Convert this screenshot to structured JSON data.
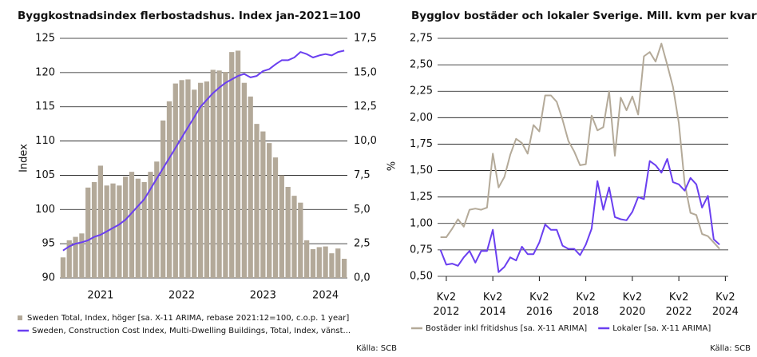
{
  "chart_data": [
    {
      "type": "combo",
      "title": "Byggkostnadsindex flerbostadshus. Index jan-2021=100",
      "ylabel": "Index",
      "y2label": "%",
      "source": "Källa: SCB",
      "categories": [
        null,
        null,
        null,
        null,
        null,
        null,
        "2021",
        null,
        null,
        null,
        null,
        null,
        null,
        null,
        null,
        null,
        null,
        null,
        null,
        "2022",
        null,
        null,
        null,
        null,
        null,
        null,
        null,
        null,
        null,
        null,
        null,
        null,
        "2023",
        null,
        null,
        null,
        null,
        null,
        null,
        null,
        null,
        null,
        "2024",
        null,
        null,
        null
      ],
      "ylim": [
        90,
        125
      ],
      "yticks": [
        90,
        95,
        100,
        105,
        110,
        115,
        120,
        125
      ],
      "y2lim": [
        0,
        17.5
      ],
      "y2ticks": [
        {
          "value": 0,
          "label": "0,0"
        },
        {
          "value": 2.5,
          "label": "2,5"
        },
        {
          "value": 5,
          "label": "5,0"
        },
        {
          "value": 7.5,
          "label": "7,5"
        },
        {
          "value": 10,
          "label": "10,0"
        },
        {
          "value": 12.5,
          "label": "12,5"
        },
        {
          "value": 15,
          "label": "15,0"
        },
        {
          "value": 17.5,
          "label": "17,5"
        }
      ],
      "grid": true,
      "series": [
        {
          "name": "Sweden Total, Index, höger [sa. X-11 ARIMA, rebase 2021:12=100, c.o.p. 1 year]",
          "type": "bar",
          "axis": "y2",
          "color": "#b3a999",
          "values": [
            1.5,
            2.75,
            3,
            3.25,
            6.6,
            7,
            8.2,
            6.75,
            6.9,
            6.75,
            7.4,
            7.75,
            7.25,
            7,
            7.75,
            8.5,
            11.5,
            12.9,
            14.2,
            14.45,
            14.5,
            13.75,
            14.25,
            14.35,
            15.2,
            15.15,
            15.05,
            16.5,
            16.6,
            14.25,
            13.25,
            11.25,
            10.7,
            9.85,
            8.8,
            7.5,
            6.65,
            6,
            5.5,
            2.75,
            2.1,
            2.25,
            2.3,
            1.8,
            2.15,
            1.4
          ]
        },
        {
          "name": "Sweden, Construction Cost Index, Multi-Dwelling Buildings, Total, Index, vänst...",
          "type": "line",
          "color": "#6a3ff0",
          "values": [
            94,
            94.6,
            95,
            95.2,
            95.5,
            96,
            96.3,
            96.8,
            97.3,
            97.8,
            98.5,
            99.5,
            100.5,
            101.5,
            103,
            104.5,
            106,
            107.5,
            109,
            110.5,
            112,
            113.5,
            115,
            116,
            117,
            117.8,
            118.5,
            119,
            119.5,
            119.8,
            119.3,
            119.5,
            120.2,
            120.5,
            121.2,
            121.8,
            121.8,
            122.2,
            123,
            122.7,
            122.2,
            122.5,
            122.7,
            122.5,
            123,
            123.2
          ]
        }
      ]
    },
    {
      "type": "line",
      "title": "Bygglov bostäder och lokaler Sverige. Mill. kvm per kvartal",
      "source": "Källa: SCB",
      "categories": [
        null,
        "Kv2 2012",
        null,
        null,
        null,
        null,
        null,
        null,
        null,
        "Kv2 2014",
        null,
        null,
        null,
        null,
        null,
        null,
        null,
        "Kv2 2016",
        null,
        null,
        null,
        null,
        null,
        null,
        null,
        "Kv2 2018",
        null,
        null,
        null,
        null,
        null,
        null,
        null,
        "Kv2 2020",
        null,
        null,
        null,
        null,
        null,
        null,
        null,
        "Kv2 2022",
        null,
        null,
        null,
        null,
        null,
        null,
        null,
        "Kv2 2024"
      ],
      "ylim": [
        0.5,
        2.75
      ],
      "yticks": [
        {
          "value": 0.5,
          "label": "0,50"
        },
        {
          "value": 0.75,
          "label": "0,75"
        },
        {
          "value": 1,
          "label": "1,00"
        },
        {
          "value": 1.25,
          "label": "1,25"
        },
        {
          "value": 1.5,
          "label": "1,50"
        },
        {
          "value": 1.75,
          "label": "1,75"
        },
        {
          "value": 2,
          "label": "2,00"
        },
        {
          "value": 2.25,
          "label": "2,25"
        },
        {
          "value": 2.5,
          "label": "2,50"
        },
        {
          "value": 2.75,
          "label": "2,75"
        }
      ],
      "grid": true,
      "series": [
        {
          "name": "Bostäder inkl fritidshus [sa. X-11 ARIMA]",
          "color": "#b4aa99",
          "values": [
            0.87,
            0.87,
            0.95,
            1.04,
            0.97,
            1.13,
            1.14,
            1.13,
            1.15,
            1.66,
            1.34,
            1.44,
            1.65,
            1.8,
            1.76,
            1.66,
            1.93,
            1.87,
            2.21,
            2.21,
            2.15,
            1.98,
            1.78,
            1.68,
            1.55,
            1.56,
            2.02,
            1.88,
            1.91,
            2.25,
            1.64,
            2.19,
            2.07,
            2.2,
            2.03,
            2.58,
            2.62,
            2.53,
            2.7,
            2.5,
            2.29,
            1.95,
            1.38,
            1.1,
            1.08,
            0.9,
            0.88,
            0.82,
            0.76,
            null
          ]
        },
        {
          "name": "Lokaler [sa. X-11 ARIMA]",
          "color": "#6a3ff0",
          "values": [
            0.75,
            0.61,
            0.62,
            0.6,
            0.68,
            0.74,
            0.63,
            0.74,
            0.74,
            0.94,
            0.54,
            0.59,
            0.68,
            0.65,
            0.78,
            0.71,
            0.71,
            0.82,
            0.99,
            0.94,
            0.94,
            0.79,
            0.76,
            0.76,
            0.7,
            0.8,
            0.95,
            1.4,
            1.13,
            1.34,
            1.06,
            1.04,
            1.03,
            1.11,
            1.25,
            1.23,
            1.59,
            1.55,
            1.48,
            1.61,
            1.39,
            1.37,
            1.31,
            1.43,
            1.37,
            1.15,
            1.26,
            0.85,
            0.8,
            null
          ]
        }
      ]
    }
  ]
}
